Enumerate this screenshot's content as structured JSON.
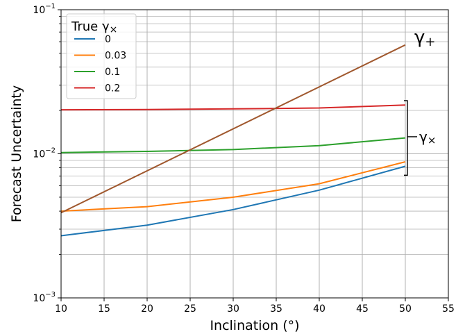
{
  "chart_data": {
    "type": "line",
    "xlabel": "Inclination (°)",
    "ylabel": "Forecast Uncertainty",
    "xlim": [
      10,
      55
    ],
    "ylim": [
      0.001,
      0.1
    ],
    "yscale": "log",
    "grid": true,
    "x_ticks": [
      10,
      15,
      20,
      25,
      30,
      35,
      40,
      45,
      50,
      55
    ],
    "x_tick_labels": [
      "10",
      "15",
      "20",
      "25",
      "30",
      "35",
      "40",
      "45",
      "50",
      "55"
    ],
    "y_ticks": [
      0.001,
      0.01,
      0.1
    ],
    "legend": {
      "title": "True γ×",
      "placement": "top-left",
      "entries": [
        "0",
        "0.03",
        "0.1",
        "0.2"
      ]
    },
    "series": [
      {
        "name": "0",
        "color": "#1f77b4",
        "x": [
          10,
          20,
          30,
          40,
          50
        ],
        "y": [
          0.0027,
          0.0032,
          0.0041,
          0.0056,
          0.0082
        ]
      },
      {
        "name": "0.03",
        "color": "#ff7f0e",
        "x": [
          10,
          20,
          30,
          40,
          50
        ],
        "y": [
          0.004,
          0.0043,
          0.005,
          0.0062,
          0.0088
        ]
      },
      {
        "name": "0.1",
        "color": "#2ca02c",
        "x": [
          10,
          20,
          30,
          40,
          50
        ],
        "y": [
          0.0102,
          0.0104,
          0.0107,
          0.0114,
          0.0129
        ]
      },
      {
        "name": "0.2",
        "color": "#d62728",
        "x": [
          10,
          20,
          30,
          40,
          50
        ],
        "y": [
          0.0202,
          0.0203,
          0.0205,
          0.0208,
          0.0218
        ]
      },
      {
        "color": "#a0582e",
        "x": [
          10,
          50
        ],
        "y": [
          0.0039,
          0.057
        ]
      }
    ],
    "annotations": {
      "gamma_plus": "γ+",
      "gamma_cross": "γ×",
      "bracket_range": [
        0.0071,
        0.0234
      ]
    }
  }
}
